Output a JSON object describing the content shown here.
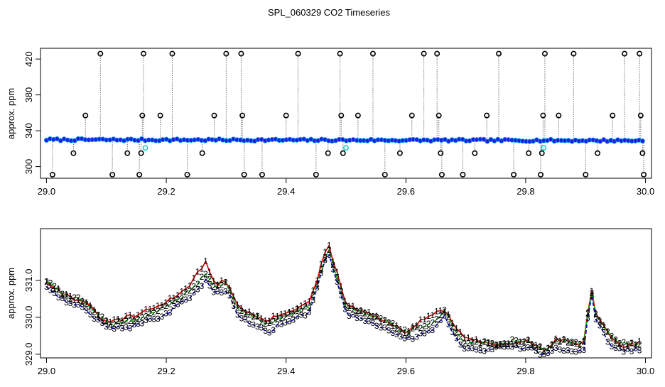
{
  "figure_title": "SPL_060329  CO2 Timeseries",
  "colors": {
    "outlier": "#000000",
    "trace": "#777777",
    "main_points": "#1f1fd6",
    "alt_points": "#00c8c8",
    "channel_1": "#e00000",
    "channel_2": "#00b000",
    "channel_3": "#0000c0",
    "outlier_bars": "#e00000"
  },
  "chart_data": [
    {
      "type": "scatter",
      "title": "",
      "xlabel": "",
      "ylabel": "approx. ppm",
      "xlim": [
        28.99,
        30.01
      ],
      "ylim": [
        287,
        432
      ],
      "x_ticks": [
        29.0,
        29.2,
        29.4,
        29.6,
        29.8,
        30.0
      ],
      "x_tick_labels": [
        "29.0",
        "29.2",
        "29.4",
        "29.6",
        "29.8",
        "30.0"
      ],
      "y_ticks": [
        300,
        340,
        380,
        420
      ],
      "y_tick_labels": [
        "300",
        "340",
        "380",
        "420"
      ],
      "baseline": {
        "start": [
          29.0,
          330
        ],
        "end": [
          29.995,
          329
        ],
        "mean": 330
      },
      "series": [
        {
          "role": "outliers",
          "points": [
            [
              29.01,
              291
            ],
            [
              29.045,
              315
            ],
            [
              29.065,
              357
            ],
            [
              29.09,
              426
            ],
            [
              29.11,
              291
            ],
            [
              29.135,
              315
            ],
            [
              29.155,
              291
            ],
            [
              29.158,
              315
            ],
            [
              29.16,
              357
            ],
            [
              29.162,
              426
            ],
            [
              29.19,
              357
            ],
            [
              29.21,
              426
            ],
            [
              29.235,
              291
            ],
            [
              29.26,
              315
            ],
            [
              29.28,
              357
            ],
            [
              29.3,
              426
            ],
            [
              29.325,
              426
            ],
            [
              29.327,
              357
            ],
            [
              29.33,
              291
            ],
            [
              29.36,
              291
            ],
            [
              29.4,
              357
            ],
            [
              29.42,
              426
            ],
            [
              29.45,
              291
            ],
            [
              29.47,
              315
            ],
            [
              29.49,
              426
            ],
            [
              29.492,
              357
            ],
            [
              29.495,
              315
            ],
            [
              29.52,
              357
            ],
            [
              29.545,
              426
            ],
            [
              29.565,
              291
            ],
            [
              29.59,
              315
            ],
            [
              29.61,
              357
            ],
            [
              29.63,
              426
            ],
            [
              29.652,
              426
            ],
            [
              29.655,
              357
            ],
            [
              29.658,
              315
            ],
            [
              29.66,
              291
            ],
            [
              29.695,
              291
            ],
            [
              29.715,
              315
            ],
            [
              29.735,
              357
            ],
            [
              29.755,
              426
            ],
            [
              29.78,
              291
            ],
            [
              29.805,
              315
            ],
            [
              29.825,
              291
            ],
            [
              29.827,
              315
            ],
            [
              29.829,
              357
            ],
            [
              29.832,
              426
            ],
            [
              29.855,
              357
            ],
            [
              29.88,
              426
            ],
            [
              29.9,
              291
            ],
            [
              29.92,
              315
            ],
            [
              29.945,
              357
            ],
            [
              29.965,
              426
            ],
            [
              29.99,
              426
            ],
            [
              29.992,
              357
            ],
            [
              29.995,
              315
            ],
            [
              29.997,
              291
            ]
          ]
        },
        {
          "role": "alternate",
          "points": [
            [
              29.165,
              321
            ],
            [
              29.5,
              321
            ],
            [
              29.83,
              321
            ]
          ]
        }
      ]
    },
    {
      "type": "line",
      "title": "",
      "xlabel": "",
      "ylabel": "approx. ppm",
      "xlim": [
        28.99,
        30.01
      ],
      "ylim": [
        328.9,
        332.4
      ],
      "x_ticks": [
        29.0,
        29.2,
        29.4,
        29.6,
        29.8,
        30.0
      ],
      "x_tick_labels": [
        "29.0",
        "29.2",
        "29.4",
        "29.6",
        "29.8",
        "30.0"
      ],
      "y_ticks": [
        329.0,
        330.0,
        331.0
      ],
      "y_tick_labels": [
        "329.0",
        "330.0",
        "331.0"
      ],
      "anchor_x": [
        29.0,
        29.03,
        29.06,
        29.1,
        29.15,
        29.2,
        29.24,
        29.265,
        29.28,
        29.3,
        29.32,
        29.35,
        29.37,
        29.4,
        29.44,
        29.47,
        29.5,
        29.55,
        29.6,
        29.64,
        29.665,
        29.68,
        29.7,
        29.75,
        29.8,
        29.83,
        29.85,
        29.9,
        29.907,
        29.915,
        29.94,
        29.96,
        29.99
      ],
      "series": [
        {
          "name": "1",
          "values": [
            331.0,
            330.6,
            330.45,
            329.85,
            330.05,
            330.4,
            330.9,
            331.5,
            330.9,
            331.0,
            330.3,
            330.0,
            329.9,
            330.15,
            330.4,
            332.0,
            330.35,
            330.0,
            329.6,
            330.05,
            330.2,
            329.8,
            329.4,
            329.25,
            329.4,
            329.1,
            329.4,
            329.3,
            331.0,
            330.2,
            329.5,
            329.2,
            329.3
          ]
        },
        {
          "name": "2",
          "values": [
            331.0,
            330.6,
            330.45,
            329.85,
            329.9,
            330.3,
            330.7,
            331.2,
            330.8,
            331.0,
            330.2,
            330.0,
            329.8,
            330.05,
            330.3,
            331.9,
            330.3,
            330.0,
            329.6,
            329.8,
            330.2,
            329.7,
            329.3,
            329.3,
            329.4,
            329.1,
            329.35,
            329.3,
            330.95,
            330.1,
            329.5,
            329.3,
            329.3
          ]
        },
        {
          "name": "3",
          "values": [
            330.85,
            330.45,
            330.3,
            329.7,
            329.75,
            330.1,
            330.55,
            331.0,
            330.6,
            330.75,
            330.0,
            329.8,
            329.6,
            329.9,
            330.15,
            331.8,
            330.1,
            329.8,
            329.4,
            329.6,
            330.0,
            329.55,
            329.1,
            329.15,
            329.2,
            329.0,
            329.15,
            329.1,
            330.9,
            330.0,
            329.3,
            329.1,
            329.1
          ]
        }
      ]
    }
  ]
}
